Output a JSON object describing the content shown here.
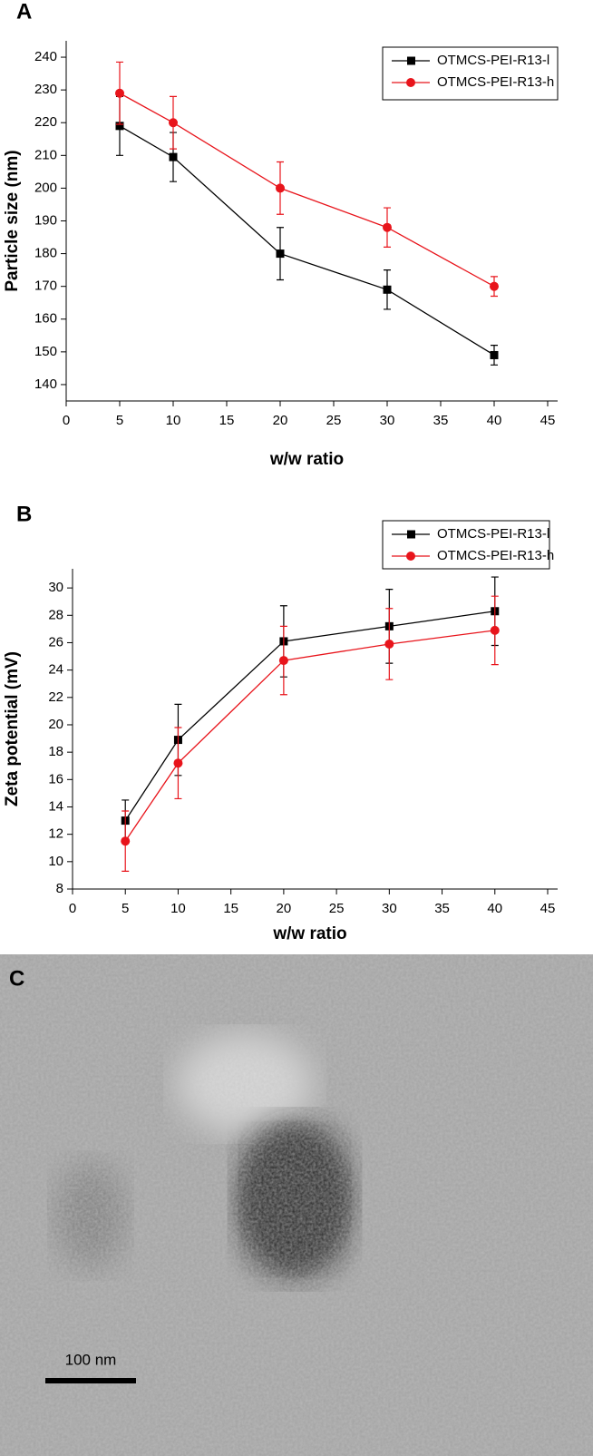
{
  "chart_data": [
    {
      "type": "line",
      "panel_label": "A",
      "x_label": "w/w ratio",
      "y_label": "Particle size (nm)",
      "x": [
        5,
        10,
        20,
        30,
        40
      ],
      "series": [
        {
          "name": "OTMCS-PEI-R13-l",
          "color": "#000000",
          "marker": "square",
          "values": [
            219,
            209.5,
            180,
            169,
            149
          ],
          "errors": [
            9,
            7.5,
            8,
            6,
            3
          ]
        },
        {
          "name": "OTMCS-PEI-R13-h",
          "color": "#e8141b",
          "marker": "circle",
          "values": [
            229,
            220,
            200,
            188,
            170
          ],
          "errors": [
            9.5,
            8,
            8,
            6,
            3
          ]
        }
      ],
      "xlim": [
        0,
        45
      ],
      "xticks": [
        0,
        5,
        10,
        15,
        20,
        25,
        30,
        35,
        40,
        45
      ],
      "ylim": [
        135,
        245
      ],
      "yticks": [
        140,
        150,
        160,
        170,
        180,
        190,
        200,
        210,
        220,
        230,
        240
      ],
      "legend": "top-right"
    },
    {
      "type": "line",
      "panel_label": "B",
      "x_label": "w/w ratio",
      "y_label": "Zeta potential (mV)",
      "x": [
        5,
        10,
        20,
        30,
        40
      ],
      "series": [
        {
          "name": "OTMCS-PEI-R13-l",
          "color": "#000000",
          "marker": "square",
          "values": [
            13,
            18.9,
            26.1,
            27.2,
            28.3
          ],
          "errors": [
            1.5,
            2.6,
            2.6,
            2.7,
            2.5
          ]
        },
        {
          "name": "OTMCS-PEI-R13-h",
          "color": "#e8141b",
          "marker": "circle",
          "values": [
            11.5,
            17.2,
            24.7,
            25.9,
            26.9
          ],
          "errors": [
            2.2,
            2.6,
            2.5,
            2.6,
            2.5
          ]
        }
      ],
      "xlim": [
        0,
        45
      ],
      "xticks": [
        0,
        5,
        10,
        15,
        20,
        25,
        30,
        35,
        40,
        45
      ],
      "ylim": [
        8,
        31.4
      ],
      "yticks": [
        8,
        10,
        12,
        14,
        16,
        18,
        20,
        22,
        24,
        26,
        28,
        30
      ],
      "legend": "top-right"
    }
  ],
  "image": {
    "panel_label": "C",
    "scale_bar_label": "100 nm"
  }
}
